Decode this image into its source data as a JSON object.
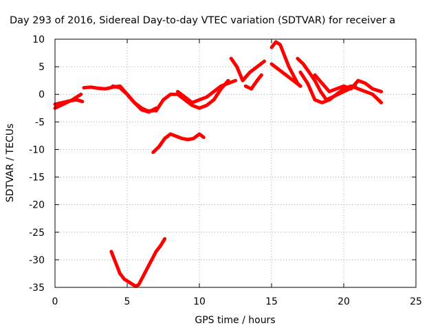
{
  "chart_data": {
    "type": "scatter",
    "title": "Day 293 of 2016, Sidereal Day-to-day VTEC variation (SDTVAR) for receiver a",
    "xlabel": "GPS time / hours",
    "ylabel": "SDTVAR / TECUs",
    "xlim": [
      0,
      25
    ],
    "ylim": [
      -35,
      10
    ],
    "x_ticks": [
      "0",
      "5",
      "10",
      "15",
      "20",
      "25"
    ],
    "y_ticks": [
      "10",
      "5",
      "0",
      "-5",
      "-10",
      "-15",
      "-20",
      "-25",
      "-30",
      "-35"
    ],
    "x_tick_values": [
      0,
      5,
      10,
      15,
      20,
      25
    ],
    "y_tick_values": [
      10,
      5,
      0,
      -5,
      -10,
      -15,
      -20,
      -25,
      -30,
      -35
    ],
    "grid": true,
    "marker_color": "#ff0000",
    "tracks": [
      {
        "x": [
          0,
          0.4,
          0.8,
          1.2,
          1.5,
          1.8
        ],
        "y": [
          -2.5,
          -2.0,
          -1.5,
          -1.0,
          -0.5,
          0.0
        ]
      },
      {
        "x": [
          0,
          0.5,
          1.0,
          1.5,
          1.9
        ],
        "y": [
          -1.8,
          -1.5,
          -1.2,
          -1.0,
          -1.3
        ]
      },
      {
        "x": [
          2.0,
          2.5,
          3.0,
          3.5,
          4.0,
          4.5,
          5.0,
          5.5,
          6.0,
          6.4,
          6.8
        ],
        "y": [
          1.2,
          1.3,
          1.1,
          1.0,
          1.3,
          1.5,
          0.0,
          -1.5,
          -2.5,
          -3.0,
          -3.0
        ]
      },
      {
        "x": [
          4.0,
          4.5,
          5.0,
          5.5,
          6.0,
          6.5,
          7.0
        ],
        "y": [
          1.5,
          1.2,
          0.0,
          -1.5,
          -2.8,
          -3.2,
          -2.5
        ]
      },
      {
        "x": [
          7.0,
          7.5,
          8.0,
          8.5,
          9.0,
          9.5,
          10.0,
          10.5,
          11.0,
          11.5,
          12.0
        ],
        "y": [
          -3.0,
          -1.0,
          0.0,
          0.0,
          -1.0,
          -2.0,
          -2.5,
          -2.0,
          -1.0,
          1.0,
          2.5
        ]
      },
      {
        "x": [
          8.5,
          9.0,
          9.5,
          10.0,
          10.5,
          11.0,
          11.5,
          12.0,
          12.5
        ],
        "y": [
          0.5,
          -0.5,
          -1.5,
          -1.0,
          -0.5,
          0.5,
          1.5,
          2.0,
          2.5
        ]
      },
      {
        "x": [
          12.2,
          12.6,
          13.0,
          13.5,
          14.0,
          14.5
        ],
        "y": [
          6.5,
          5.0,
          2.5,
          4.0,
          5.0,
          6.0
        ]
      },
      {
        "x": [
          13.2,
          13.6,
          14.0,
          14.3
        ],
        "y": [
          1.5,
          1.0,
          2.5,
          3.5
        ]
      },
      {
        "x": [
          15.0,
          15.3,
          15.6,
          15.9,
          16.2,
          16.5,
          16.8,
          17.0
        ],
        "y": [
          8.5,
          9.5,
          9.0,
          7.0,
          5.0,
          3.5,
          2.0,
          1.5
        ]
      },
      {
        "x": [
          15.0,
          15.5,
          16.0,
          16.5,
          17.0
        ],
        "y": [
          5.5,
          4.5,
          3.5,
          2.5,
          1.5
        ]
      },
      {
        "x": [
          16.8,
          17.2,
          17.6,
          18.0,
          18.4,
          18.8,
          19.2,
          19.6,
          20.0,
          20.4,
          20.8
        ],
        "y": [
          6.5,
          5.5,
          4.0,
          2.5,
          0.5,
          -1.0,
          -0.5,
          0.0,
          0.5,
          1.0,
          1.5
        ]
      },
      {
        "x": [
          17.0,
          17.5,
          18.0,
          18.5,
          19.0,
          19.5,
          20.0,
          20.5,
          21.0,
          21.5,
          22.0,
          22.6
        ],
        "y": [
          4.0,
          2.0,
          -1.0,
          -1.5,
          -1.0,
          0.0,
          1.0,
          1.5,
          1.0,
          0.5,
          0.0,
          -1.5
        ]
      },
      {
        "x": [
          18.0,
          18.5,
          19.0,
          19.5,
          20.0,
          20.5,
          21.0,
          21.5,
          22.0,
          22.6
        ],
        "y": [
          3.5,
          2.0,
          0.5,
          1.0,
          1.5,
          1.0,
          2.5,
          2.0,
          1.0,
          0.5
        ]
      },
      {
        "x": [
          6.8,
          7.2,
          7.6,
          8.0,
          8.4,
          8.8,
          9.2,
          9.6,
          10.0,
          10.3
        ],
        "y": [
          -10.5,
          -9.5,
          -8.0,
          -7.2,
          -7.6,
          -8.0,
          -8.2,
          -8.0,
          -7.2,
          -7.8
        ]
      },
      {
        "x": [
          3.9,
          4.2,
          4.5,
          4.8,
          5.1,
          5.4,
          5.6,
          5.8,
          6.1,
          6.4,
          6.7,
          7.0,
          7.3,
          7.6
        ],
        "y": [
          -28.5,
          -30.5,
          -32.5,
          -33.5,
          -34.0,
          -34.5,
          -34.8,
          -34.5,
          -33.0,
          -31.5,
          -30.0,
          -28.5,
          -27.5,
          -26.2
        ]
      }
    ]
  }
}
